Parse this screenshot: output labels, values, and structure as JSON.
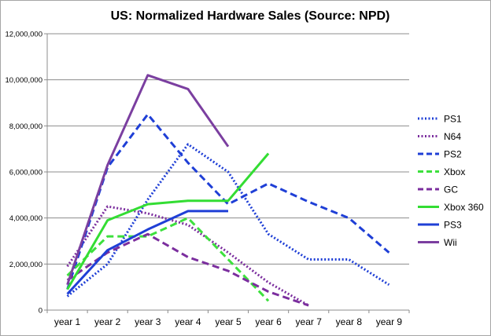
{
  "chart_data": {
    "type": "line",
    "title": "US: Normalized Hardware Sales (Source: NPD)",
    "xlabel": "",
    "ylabel": "",
    "categories": [
      "year 1",
      "year 2",
      "year 3",
      "year 4",
      "year 5",
      "year 6",
      "year 7",
      "year 8",
      "year 9"
    ],
    "ylim": [
      0,
      12000000
    ],
    "yticks": [
      0,
      2000000,
      4000000,
      6000000,
      8000000,
      10000000,
      12000000
    ],
    "ytick_labels": [
      "0",
      "2,000,000",
      "4,000,000",
      "6,000,000",
      "8,000,000",
      "10,000,000",
      "12,000,000"
    ],
    "grid": "horizontal",
    "legend_position": "right",
    "series": [
      {
        "name": "PS1",
        "color": "#1f3fd6",
        "style": "dotted",
        "values": [
          600000,
          2000000,
          4800000,
          7200000,
          6000000,
          3300000,
          2200000,
          2200000,
          1100000
        ]
      },
      {
        "name": "N64",
        "color": "#7b2e9e",
        "style": "dotted",
        "values": [
          1900000,
          4500000,
          4200000,
          3700000,
          2500000,
          1200000,
          200000,
          null,
          null
        ]
      },
      {
        "name": "PS2",
        "color": "#1f3fd6",
        "style": "dashed",
        "values": [
          900000,
          6200000,
          8500000,
          6400000,
          4600000,
          5500000,
          4700000,
          4000000,
          2500000
        ]
      },
      {
        "name": "Xbox",
        "color": "#3de03d",
        "style": "dashed",
        "values": [
          1500000,
          3200000,
          3200000,
          4000000,
          2200000,
          400000,
          null,
          null,
          null
        ]
      },
      {
        "name": "GC",
        "color": "#7b2e9e",
        "style": "dashed",
        "values": [
          1300000,
          2500000,
          3300000,
          2300000,
          1700000,
          800000,
          200000,
          null,
          null
        ]
      },
      {
        "name": "Xbox 360",
        "color": "#33dd33",
        "style": "solid",
        "values": [
          900000,
          3900000,
          4600000,
          4750000,
          4750000,
          6800000,
          null,
          null,
          null
        ]
      },
      {
        "name": "PS3",
        "color": "#1f3fd6",
        "style": "solid",
        "values": [
          700000,
          2600000,
          3500000,
          4300000,
          4300000,
          null,
          null,
          null,
          null
        ]
      },
      {
        "name": "Wii",
        "color": "#7b3fa0",
        "style": "solid",
        "values": [
          1100000,
          6300000,
          10200000,
          9600000,
          7100000,
          null,
          null,
          null,
          null
        ]
      }
    ]
  }
}
